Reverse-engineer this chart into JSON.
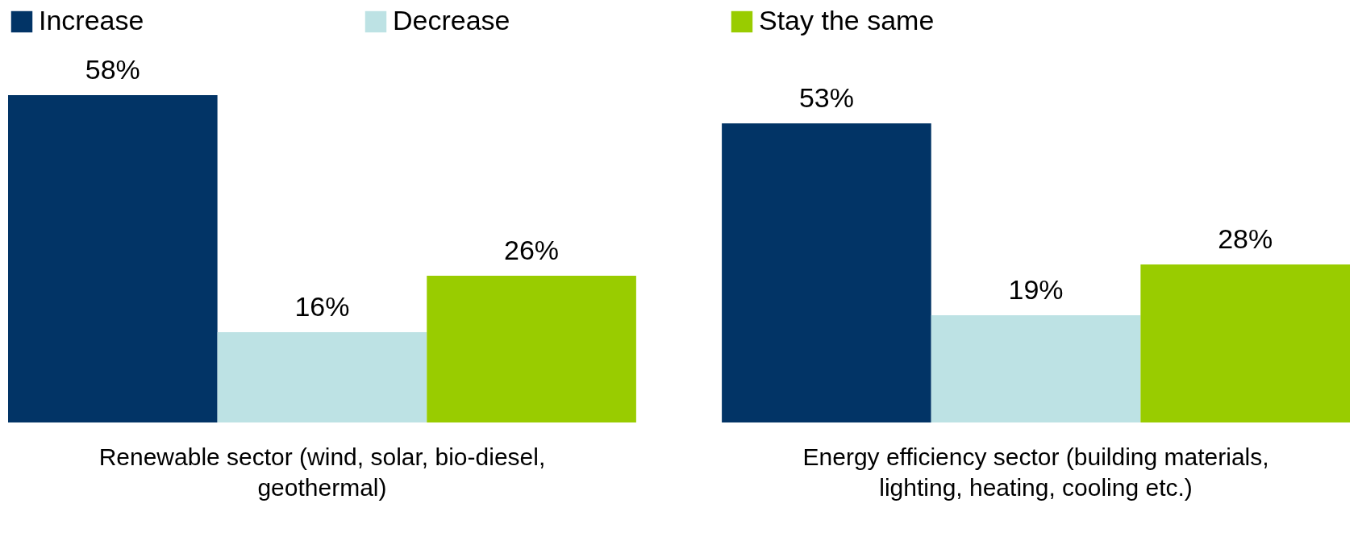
{
  "chart_data": {
    "type": "bar",
    "categories": [
      "Renewable sector (wind, solar, bio-diesel, geothermal)",
      "Energy efficiency sector (building materials, lighting, heating, cooling etc.)"
    ],
    "series": [
      {
        "name": "Increase",
        "color": "#023466",
        "values": [
          58,
          53
        ],
        "value_labels": [
          "58%",
          "53%"
        ]
      },
      {
        "name": "Decrease",
        "color": "#bde2e4",
        "values": [
          16,
          19
        ],
        "value_labels": [
          "16%",
          "19%"
        ]
      },
      {
        "name": "Stay the same",
        "color": "#99cc00",
        "values": [
          26,
          28
        ],
        "value_labels": [
          "26%",
          "28%"
        ]
      }
    ],
    "legend": "top"
  }
}
